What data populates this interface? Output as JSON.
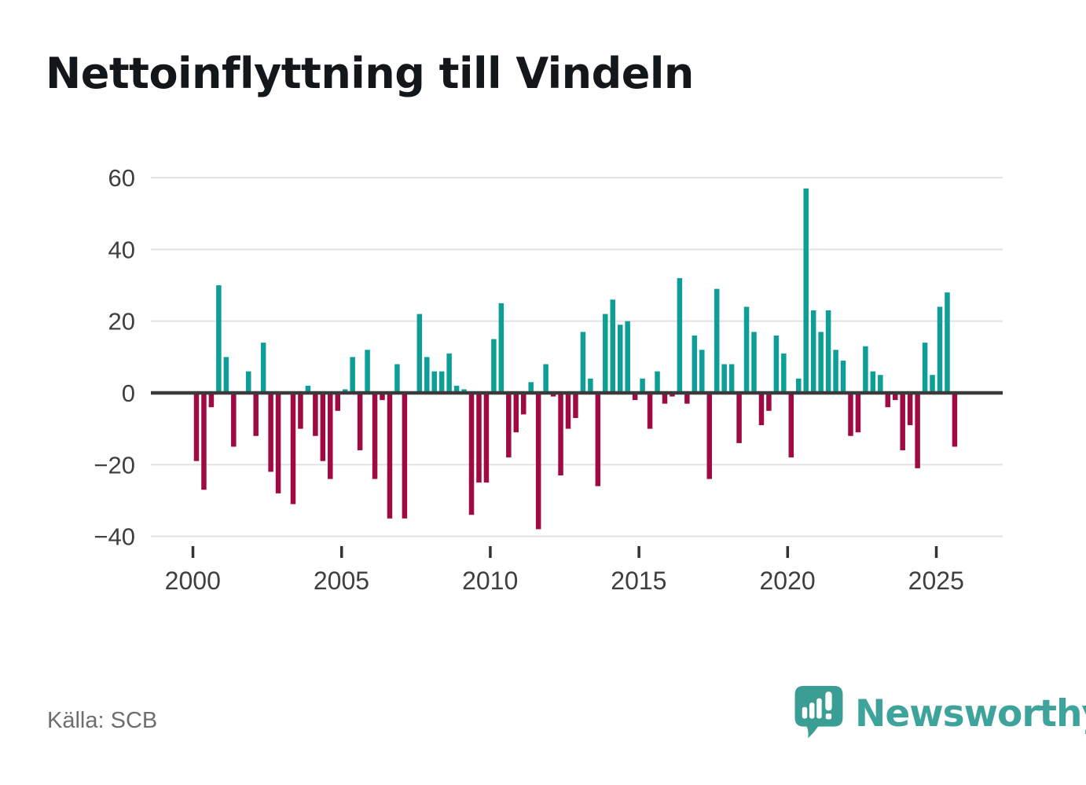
{
  "chart_data": {
    "type": "bar",
    "title": "Nettoinflyttning till Vindeln",
    "source": "Källa: SCB",
    "frequency": "quarterly",
    "start_period": "2000 Q1",
    "end_period": "2025 Q3",
    "values": [
      -19,
      -27,
      -4,
      30,
      10,
      -15,
      0,
      6,
      -12,
      14,
      -22,
      -28,
      0,
      -31,
      -10,
      2,
      -12,
      -19,
      -24,
      -5,
      1,
      10,
      -16,
      12,
      -24,
      -2,
      -35,
      8,
      -35,
      0,
      22,
      10,
      6,
      6,
      11,
      2,
      1,
      -34,
      -25,
      -25,
      15,
      25,
      -18,
      -11,
      -6,
      3,
      -38,
      8,
      -1,
      -23,
      -10,
      -7,
      17,
      4,
      -26,
      22,
      26,
      19,
      20,
      -2,
      4,
      -10,
      6,
      -3,
      -1,
      32,
      -3,
      16,
      12,
      -24,
      29,
      8,
      8,
      -14,
      24,
      17,
      -9,
      -5,
      16,
      11,
      -18,
      4,
      57,
      23,
      17,
      23,
      12,
      9,
      -12,
      -11,
      13,
      6,
      5,
      -4,
      -2,
      -16,
      -9,
      -21,
      14,
      5,
      24,
      28,
      -15
    ],
    "y_ticks": [
      60,
      40,
      20,
      0,
      -20,
      -40
    ],
    "y_tick_labels": [
      "60",
      "40",
      "20",
      "0",
      "−20",
      "−40"
    ],
    "ylim": [
      -44,
      63
    ],
    "x_tick_labels": [
      "2000",
      "2005",
      "2010",
      "2015",
      "2020",
      "2025"
    ],
    "x_tick_quarter_index": [
      0,
      20,
      40,
      60,
      80,
      100
    ],
    "grid": "horizontal",
    "legend": "none",
    "colors": {
      "positive": "#0D9E97",
      "negative": "#A00A42",
      "grid": "#E2E2E2",
      "zero_line": "#3A3A3A",
      "axis_text": "#3F3F3F",
      "tick_mark": "#333333"
    }
  },
  "footer": {
    "logo_text": "Newsworthy",
    "logo_color": "#3DA39B",
    "logo_bubble_color": "#3B9E95"
  }
}
